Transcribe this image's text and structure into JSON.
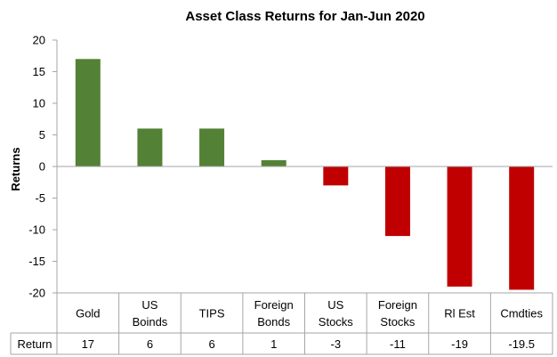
{
  "chart_data": {
    "type": "bar",
    "title": "Asset Class Returns for Jan-Jun 2020",
    "ylabel": "Returns",
    "xlabel": "",
    "categories": [
      [
        "Gold"
      ],
      [
        "US",
        "Boinds"
      ],
      [
        "TIPS"
      ],
      [
        "Foreign",
        "Bonds"
      ],
      [
        "US",
        "Stocks"
      ],
      [
        "Foreign",
        "Stocks"
      ],
      [
        "Rl Est"
      ],
      [
        "Cmdties"
      ]
    ],
    "series": [
      {
        "name": "Return",
        "values": [
          17,
          6,
          6,
          1,
          -3,
          -11,
          -19,
          -19.5
        ]
      }
    ],
    "value_labels": [
      "17",
      "6",
      "6",
      "1",
      "-3",
      "-11",
      "-19",
      "-19.5"
    ],
    "ylim": [
      -20,
      20
    ],
    "yticks": [
      20,
      15,
      10,
      5,
      0,
      -5,
      -10,
      -15,
      -20
    ],
    "grid": false,
    "legend": "none",
    "data_table": true,
    "colors": {
      "positive": "#538135",
      "negative": "#c00000",
      "border": "#a6a6a6"
    }
  }
}
